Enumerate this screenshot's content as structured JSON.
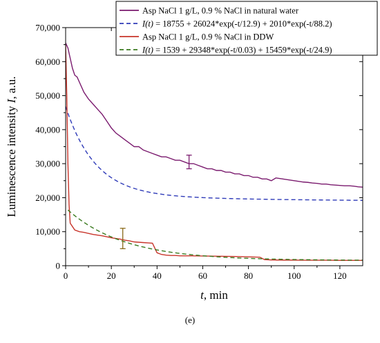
{
  "chart_data": {
    "type": "line",
    "xlabel": {
      "var": "t",
      "rest": ", min"
    },
    "ylabel": {
      "main": "Luminescence intensity ",
      "var": "I",
      "rest": ", a.u."
    },
    "xlim": [
      0,
      130
    ],
    "ylim": [
      0,
      70000
    ],
    "xticks": [
      0,
      20,
      40,
      60,
      80,
      100,
      120
    ],
    "yticks": [
      0,
      10000,
      20000,
      30000,
      40000,
      50000,
      60000,
      70000
    ],
    "ytick_labels": [
      "0",
      "10,000",
      "20,000",
      "30,000",
      "40,000",
      "50,000",
      "60,000",
      "70,000"
    ],
    "legend_position": "top-right",
    "series": [
      {
        "name": "Asp NaCl 1 g/L, 0.9 % NaCl in natural water",
        "kind": "data",
        "color": "#7a1a6e",
        "x": [
          0,
          1,
          2,
          3,
          4,
          5,
          6,
          8,
          10,
          12,
          14,
          16,
          18,
          20,
          22,
          24,
          26,
          28,
          30,
          32,
          34,
          36,
          38,
          40,
          42,
          44,
          46,
          48,
          50,
          52,
          54,
          56,
          58,
          60,
          62,
          64,
          66,
          68,
          70,
          72,
          74,
          76,
          78,
          80,
          82,
          84,
          86,
          88,
          90,
          92,
          94,
          96,
          98,
          100,
          102,
          104,
          106,
          108,
          110,
          112,
          114,
          116,
          118,
          120,
          122,
          124,
          126,
          128,
          130
        ],
        "y": [
          65500,
          64000,
          61000,
          58000,
          56000,
          55500,
          54000,
          51000,
          49000,
          47500,
          46000,
          44500,
          42500,
          40500,
          39000,
          38000,
          37000,
          36000,
          35000,
          35000,
          34000,
          33500,
          33000,
          32500,
          32000,
          32000,
          31500,
          31000,
          31000,
          30500,
          30000,
          30000,
          29500,
          29000,
          28500,
          28500,
          28000,
          28000,
          27500,
          27500,
          27000,
          27000,
          26500,
          26500,
          26000,
          26000,
          25500,
          25500,
          25000,
          25800,
          25600,
          25400,
          25200,
          25000,
          24800,
          24600,
          24500,
          24300,
          24200,
          24000,
          24000,
          23800,
          23700,
          23600,
          23500,
          23500,
          23400,
          23200,
          23100
        ]
      },
      {
        "name_prefix": "",
        "name_var": "I(t)",
        "name_rest": " = 18755 + 26024*exp(-t/12.9) + 2010*exp(-t/88.2)",
        "kind": "fit",
        "color": "#2e3ab8",
        "model": {
          "c": 18755,
          "terms": [
            [
              26024,
              12.9
            ],
            [
              2010,
              88.2
            ]
          ]
        }
      },
      {
        "name": "Asp NaCl 1 g/L, 0.9 % NaCl in DDW",
        "kind": "data",
        "color": "#c8342a",
        "x": [
          0,
          0.5,
          1,
          1.5,
          2,
          3,
          4,
          6,
          8,
          10,
          12,
          14,
          16,
          18,
          20,
          22,
          24,
          26,
          28,
          30,
          32,
          34,
          36,
          38,
          40,
          42,
          44,
          46,
          48,
          50,
          55,
          60,
          65,
          70,
          75,
          80,
          85,
          87,
          90,
          95,
          100,
          105,
          110,
          115,
          120,
          125,
          130
        ],
        "y": [
          65000,
          50000,
          30000,
          18000,
          12500,
          11500,
          10500,
          10000,
          9800,
          9500,
          9200,
          9000,
          8800,
          8500,
          8200,
          8000,
          7800,
          7500,
          7300,
          7000,
          6900,
          6800,
          6700,
          6600,
          3800,
          3300,
          3100,
          3000,
          3000,
          2900,
          2900,
          2850,
          2800,
          2750,
          2700,
          2600,
          2500,
          1800,
          1700,
          1650,
          1650,
          1600,
          1600,
          1600,
          1550,
          1550,
          1550
        ]
      },
      {
        "name_prefix": "",
        "name_var": "I(t)",
        "name_rest": " = 1539 + 29348*exp(-t/0.03) + 15459*exp(-t/24.9)",
        "kind": "fit",
        "color": "#3a7a1e",
        "model": {
          "c": 1539,
          "terms": [
            [
              29348,
              0.03
            ],
            [
              15459,
              24.9
            ]
          ]
        }
      }
    ],
    "error_bars": [
      {
        "x": 54,
        "y": 30500,
        "err": 2000,
        "color": "#7a1a6e"
      },
      {
        "x": 25,
        "y": 8000,
        "err": 3000,
        "color": "#8a6a1a"
      }
    ]
  },
  "caption": "(e)"
}
